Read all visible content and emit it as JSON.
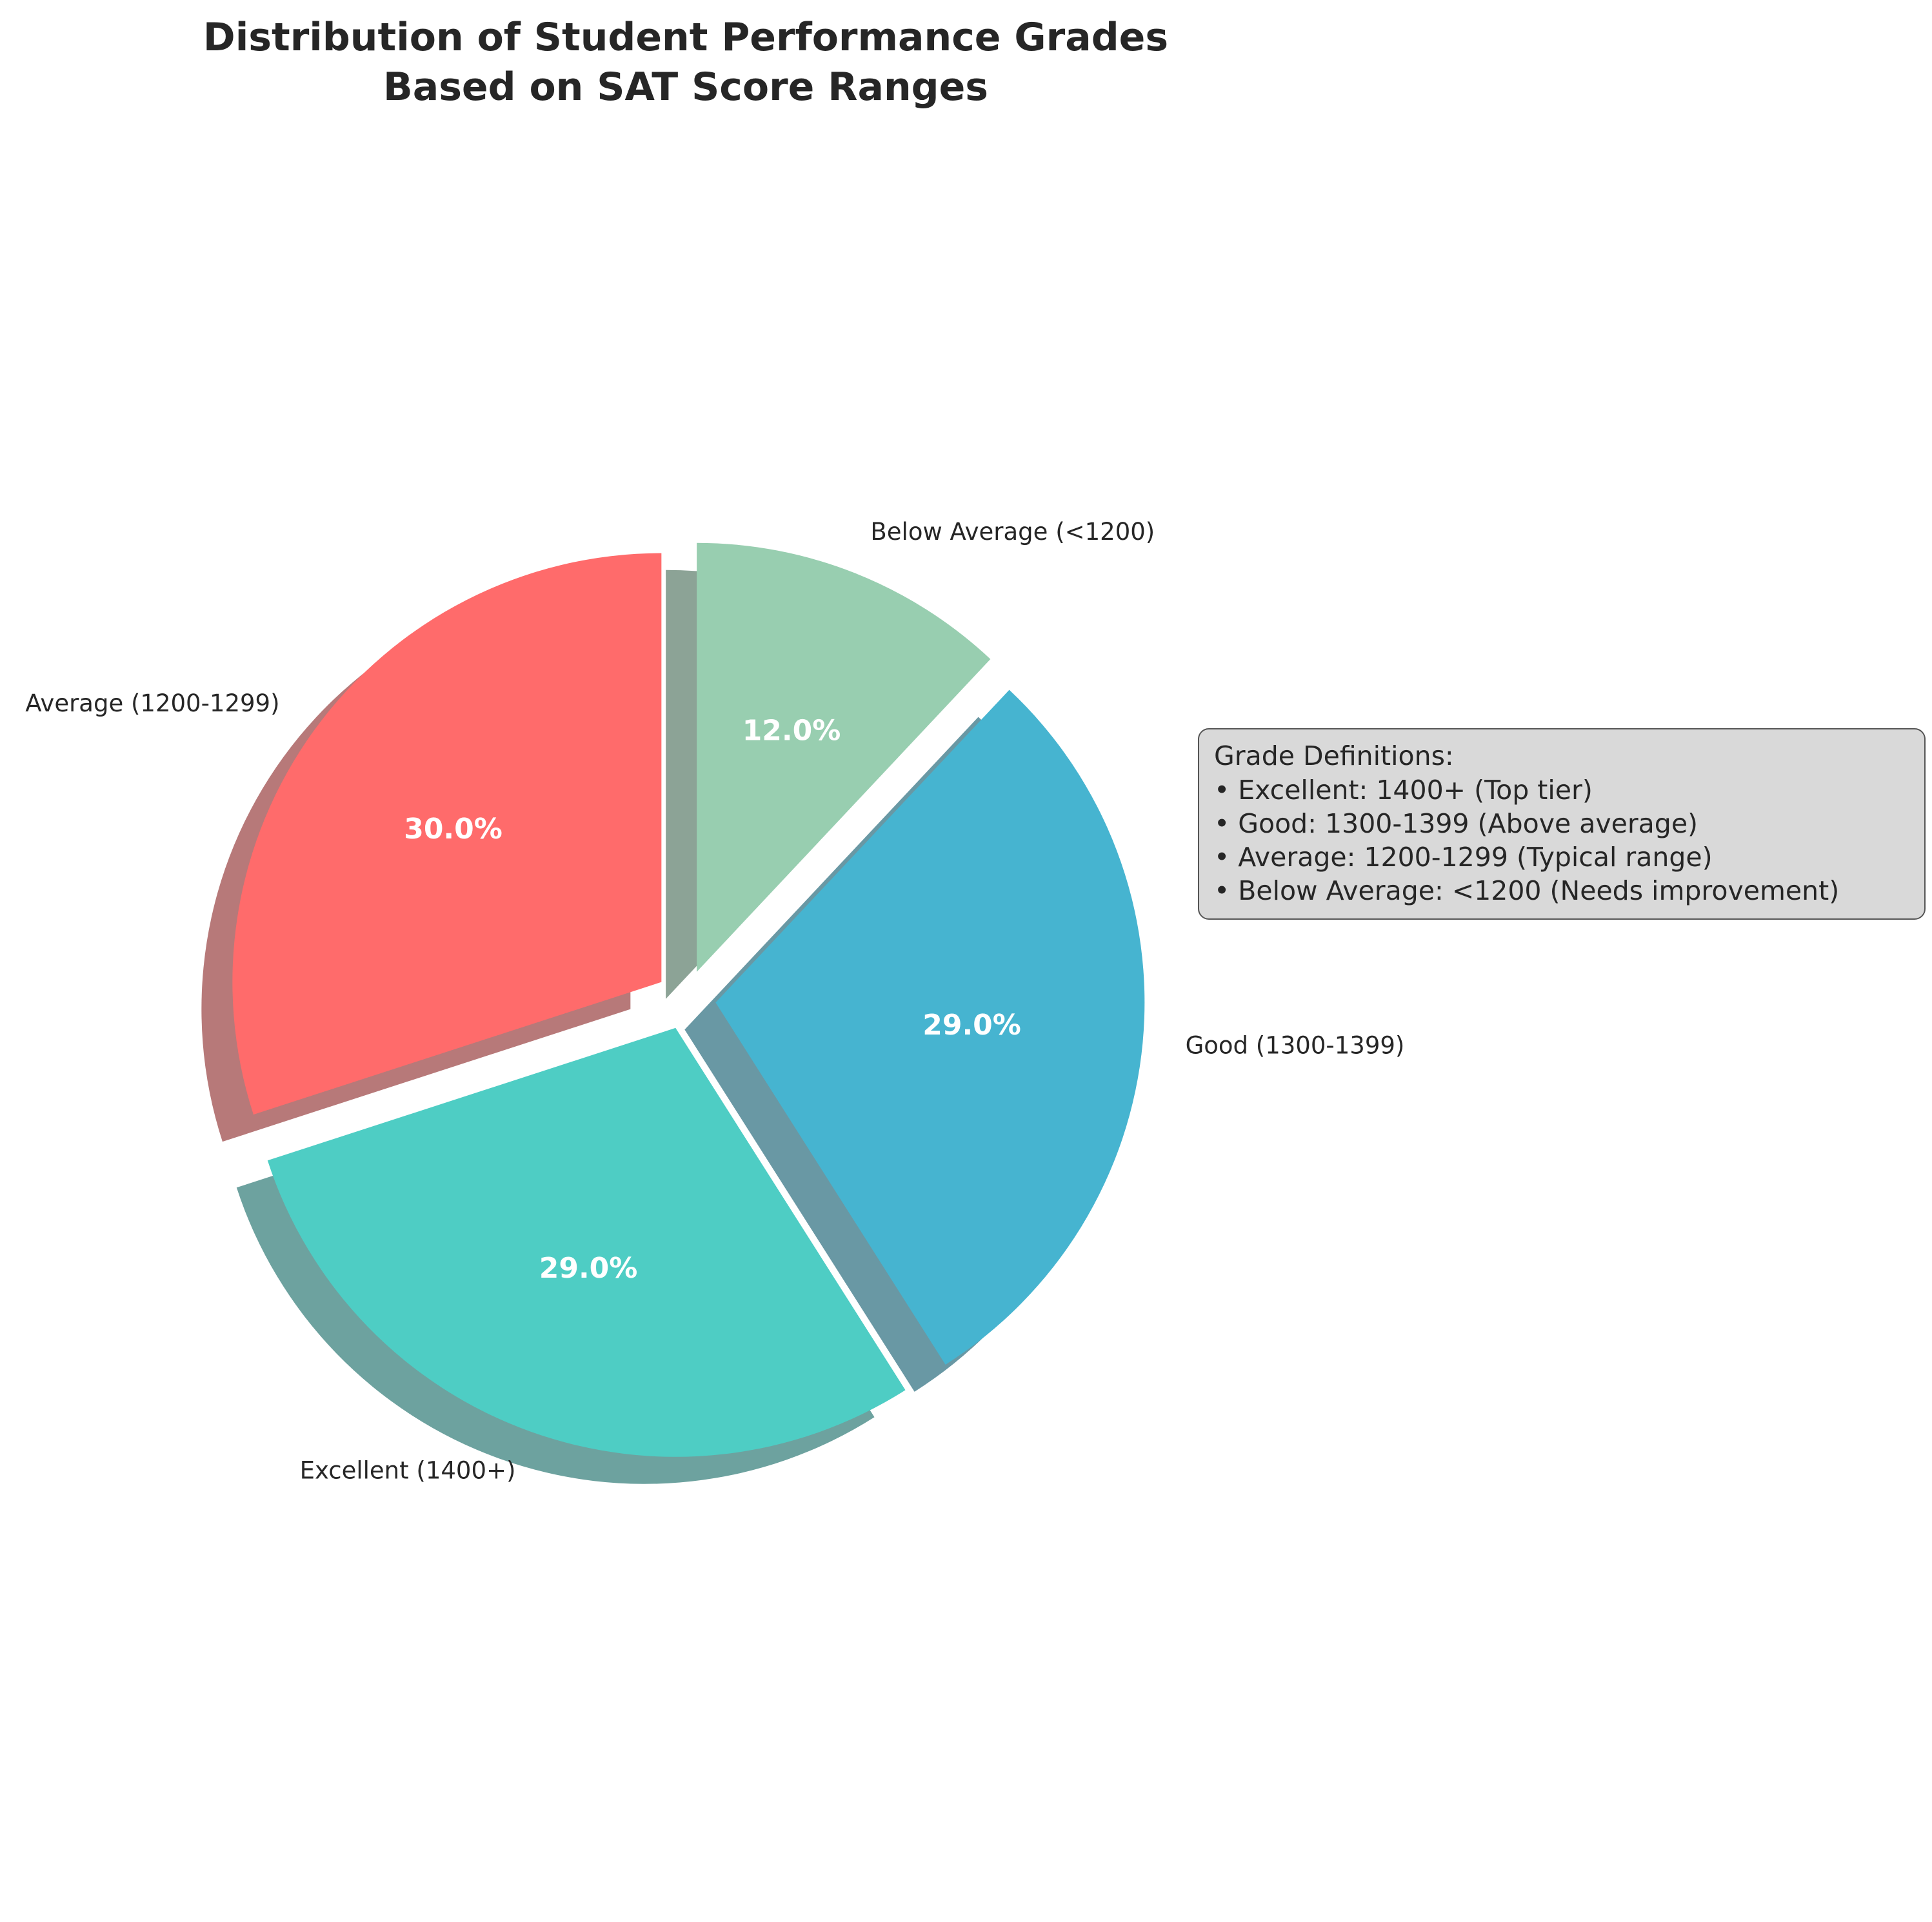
{
  "chart_data": {
    "type": "pie",
    "title": [
      "Distribution of Student Performance Grades",
      "Based on SAT Score Ranges"
    ],
    "slices": [
      {
        "label": "Below Average (<1200)",
        "value": 12.0,
        "pct_label": "12.0%",
        "color": "#98CEB0"
      },
      {
        "label": "Good (1300-1399)",
        "value": 29.0,
        "pct_label": "29.0%",
        "color": "#46B4D0"
      },
      {
        "label": "Excellent (1400+)",
        "value": 29.0,
        "pct_label": "29.0%",
        "color": "#4ECDC4"
      },
      {
        "label": "Average (1200-1299)",
        "value": 30.0,
        "pct_label": "30.0%",
        "color": "#FF6B6B"
      }
    ],
    "start_angle_deg": 90,
    "direction": "clockwise",
    "shadow": true,
    "exploded": true,
    "legend_placement": "right",
    "annotation": {
      "title": "Grade Definitions:",
      "lines": [
        "• Excellent: 1400+ (Top tier)",
        "• Good: 1300-1399 (Above average)",
        "• Average: 1200-1299 (Typical range)",
        "• Below Average: <1200 (Needs improvement)"
      ],
      "background": "#D9D9D9"
    }
  }
}
